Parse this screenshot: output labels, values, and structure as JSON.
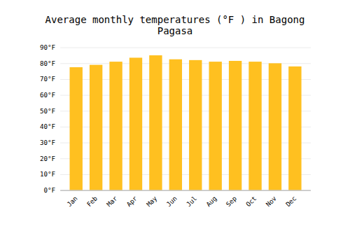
{
  "chart_data": {
    "type": "bar",
    "title": "Average monthly temperatures (°F ) in Bagong Pagasa",
    "categories": [
      "Jan",
      "Feb",
      "Mar",
      "Apr",
      "May",
      "Jun",
      "Jul",
      "Aug",
      "Sep",
      "Oct",
      "Nov",
      "Dec"
    ],
    "values": [
      77.5,
      79.0,
      81.0,
      83.5,
      85.0,
      82.5,
      82.0,
      81.0,
      81.5,
      81.0,
      80.0,
      78.0
    ],
    "color": "#FFC020",
    "ylim": [
      0,
      90
    ],
    "yticks": [
      {
        "value": 0,
        "label": "0°F"
      },
      {
        "value": 10,
        "label": "10°F"
      },
      {
        "value": 20,
        "label": "20°F"
      },
      {
        "value": 30,
        "label": "30°F"
      },
      {
        "value": 40,
        "label": "40°F"
      },
      {
        "value": 50,
        "label": "50°F"
      },
      {
        "value": 60,
        "label": "60°F"
      },
      {
        "value": 70,
        "label": "70°F"
      },
      {
        "value": 80,
        "label": "80°F"
      },
      {
        "value": 90,
        "label": "90°F"
      }
    ],
    "grid": true
  }
}
